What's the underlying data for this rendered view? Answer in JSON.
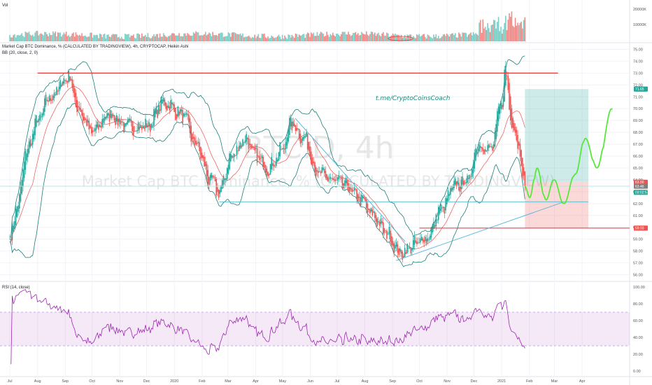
{
  "chart_data": {
    "type": "candlestick",
    "symbol_watermark": "BTC.D, 4h",
    "symbol_watermark_sub": "Market Cap BTC Dominance, % (CALCULATED BY TRADINGVIEW)",
    "main_legend": "Market Cap BTC Dominance, % (CALCULATED BY TRADINGVIEW), 4h, CRYPTOCAP, Heikin Ashi",
    "bb_legend": "BB (20, close, 2, 0)",
    "volume_legend": "Vol",
    "rsi_legend": "RSI (14, close)",
    "annotation": "t.me/CryptoCoinsCoach",
    "x_ticks": [
      "Jul",
      "Aug",
      "Sep",
      "Oct",
      "Nov",
      "Dec",
      "2020",
      "Feb",
      "Mar",
      "Apr",
      "May",
      "Jun",
      "Jul",
      "Aug",
      "Sep",
      "Oct",
      "Nov",
      "Dec",
      "2021",
      "Feb",
      "Mar",
      "Apr"
    ],
    "main_y_ticks": [
      "75.00",
      "74.00",
      "73.00",
      "72.00",
      "71.00",
      "70.00",
      "69.00",
      "68.00",
      "67.00",
      "66.00",
      "65.00",
      "64.00",
      "63.00",
      "62.00",
      "61.00",
      "60.00",
      "59.00",
      "58.00",
      "57.00",
      "56.00"
    ],
    "main_ylim": [
      55.5,
      75.5
    ],
    "volume_y_ticks": [
      "20000K",
      "10000K"
    ],
    "rsi_y_ticks": [
      "100.00",
      "80.00",
      "60.00",
      "40.00",
      "20.00",
      "0.00"
    ],
    "rsi_band": [
      30,
      70
    ],
    "price_tags": [
      {
        "label": "71.65",
        "value": 71.65,
        "color": "#26a69a"
      },
      {
        "label": "63.80",
        "value": 63.8,
        "color": "#ef5350"
      },
      {
        "label": "63.46",
        "value": 63.46,
        "color": "#7f7f7f"
      },
      {
        "label": "03:02:57",
        "value": 62.95,
        "color": "#26a69a"
      },
      {
        "label": "59.93",
        "value": 59.93,
        "color": "#ef5350"
      }
    ],
    "resistance_level": 73.0,
    "support_level": 59.93,
    "horizontal_level": 62.15,
    "position": {
      "entry": 63.8,
      "target": 71.65,
      "stop": 59.93
    },
    "price_waypoints": [
      [
        "2019-07-01",
        59.0
      ],
      [
        "2019-07-10",
        62.0
      ],
      [
        "2019-07-20",
        66.5
      ],
      [
        "2019-08-01",
        69.0
      ],
      [
        "2019-08-15",
        71.0
      ],
      [
        "2019-09-05",
        72.7
      ],
      [
        "2019-09-15",
        70.0
      ],
      [
        "2019-10-01",
        68.0
      ],
      [
        "2019-10-20",
        69.5
      ],
      [
        "2019-11-10",
        68.5
      ],
      [
        "2019-12-01",
        68.5
      ],
      [
        "2019-12-20",
        70.5
      ],
      [
        "2020-01-10",
        69.5
      ],
      [
        "2020-01-25",
        67.0
      ],
      [
        "2020-02-10",
        64.0
      ],
      [
        "2020-02-20",
        63.0
      ],
      [
        "2020-03-05",
        66.0
      ],
      [
        "2020-03-20",
        67.5
      ],
      [
        "2020-04-01",
        66.0
      ],
      [
        "2020-04-15",
        65.0
      ],
      [
        "2020-05-01",
        66.5
      ],
      [
        "2020-05-10",
        68.8
      ],
      [
        "2020-05-25",
        67.5
      ],
      [
        "2020-06-10",
        64.5
      ],
      [
        "2020-06-25",
        64.0
      ],
      [
        "2020-07-10",
        63.5
      ],
      [
        "2020-07-25",
        62.5
      ],
      [
        "2020-08-10",
        61.0
      ],
      [
        "2020-08-25",
        59.5
      ],
      [
        "2020-09-10",
        57.8
      ],
      [
        "2020-09-25",
        58.5
      ],
      [
        "2020-10-10",
        59.2
      ],
      [
        "2020-10-25",
        61.5
      ],
      [
        "2020-11-10",
        63.5
      ],
      [
        "2020-11-25",
        64.0
      ],
      [
        "2020-12-05",
        67.0
      ],
      [
        "2020-12-20",
        66.5
      ],
      [
        "2021-01-01",
        70.5
      ],
      [
        "2021-01-05",
        73.3
      ],
      [
        "2021-01-12",
        69.0
      ],
      [
        "2021-01-20",
        67.0
      ],
      [
        "2021-01-27",
        63.46
      ]
    ],
    "projection_waypoints": [
      [
        "2021-01-27",
        63.46
      ],
      [
        "2021-02-02",
        62.5
      ],
      [
        "2021-02-10",
        65.0
      ],
      [
        "2021-02-20",
        62.3
      ],
      [
        "2021-03-01",
        64.0
      ],
      [
        "2021-03-12",
        62.0
      ],
      [
        "2021-03-25",
        64.5
      ],
      [
        "2021-04-05",
        67.5
      ],
      [
        "2021-04-18",
        65.0
      ],
      [
        "2021-05-05",
        70.0
      ]
    ]
  }
}
